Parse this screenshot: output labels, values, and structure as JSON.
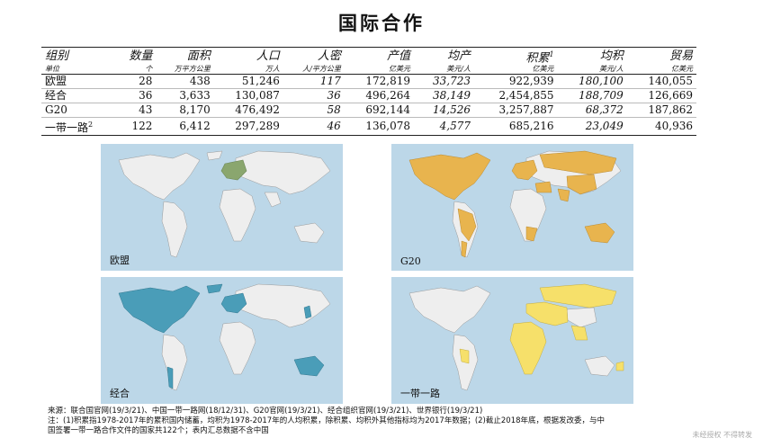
{
  "title": "国际合作",
  "table": {
    "headers": [
      "组别",
      "数量",
      "面积",
      "人口",
      "人密",
      "产值",
      "均产",
      "积累",
      "均积",
      "贸易"
    ],
    "units": [
      "单位",
      "个",
      "万平方公里",
      "万人",
      "人/平方公里",
      "亿美元",
      "美元/人",
      "亿美元",
      "美元/人",
      "亿美元"
    ],
    "rows": [
      {
        "group": "欧盟",
        "count": "28",
        "area": "438",
        "pop": "51,246",
        "density": "117",
        "output": "172,819",
        "per_output": "33,723",
        "accum": "922,939",
        "per_accum": "180,100",
        "trade": "140,055"
      },
      {
        "group": "经合",
        "count": "36",
        "area": "3,633",
        "pop": "130,087",
        "density": "36",
        "output": "496,264",
        "per_output": "38,149",
        "accum": "2,454,855",
        "per_accum": "188,709",
        "trade": "126,669"
      },
      {
        "group": "G20",
        "count": "43",
        "area": "8,170",
        "pop": "476,492",
        "density": "58",
        "output": "692,144",
        "per_output": "14,526",
        "accum": "3,257,887",
        "per_accum": "68,372",
        "trade": "187,862"
      },
      {
        "group": "一带一路",
        "count": "122",
        "area": "6,412",
        "pop": "297,289",
        "density": "46",
        "output": "136,078",
        "per_output": "4,577",
        "accum": "685,216",
        "per_accum": "23,049",
        "trade": "40,936"
      }
    ]
  },
  "maps": [
    {
      "label": "欧盟",
      "highlight": "#8aa66e"
    },
    {
      "label": "G20",
      "highlight": "#e8b44e"
    },
    {
      "label": "经合",
      "highlight": "#4a9db8"
    },
    {
      "label": "一带一路",
      "highlight": "#f6e06a"
    }
  ],
  "notes": {
    "line1": "来源：联合国官网(19/3/21)、中国一带一路网(18/12/31)、G20官网(19/3/21)、经合组织官网(19/3/21)、世界银行(19/3/21)",
    "line2": "注：(1)积累指1978-2017年的累积国内储蓄，均积为1978-2017年的人均积累，除积累、均积外其他指标均为2017年数据；(2)截止2018年底，根据发改委，与中",
    "line3": "国签署一带一路合作文件的国家共122个；表内汇总数据不含中国"
  },
  "watermark": "未经授权 不得转发"
}
